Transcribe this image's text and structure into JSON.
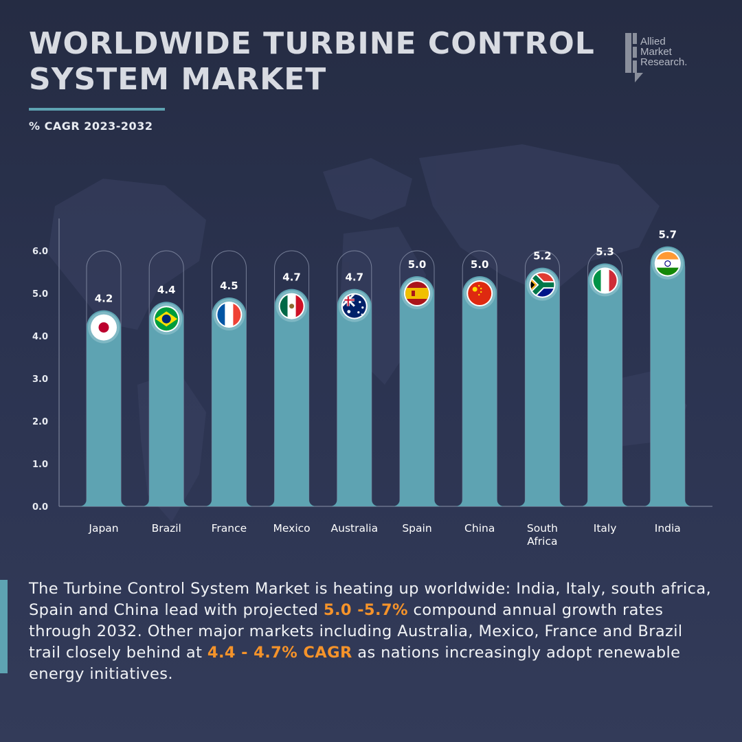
{
  "header": {
    "title": "WORLDWIDE TURBINE CONTROL SYSTEM MARKET",
    "subtitle": "% CAGR 2023-2032"
  },
  "logo": {
    "lines": [
      "Allied",
      "Market",
      "Research."
    ]
  },
  "colors": {
    "background": "#2b3350",
    "bar": "#5ea3b2",
    "highlight": "#f5932a",
    "text": "#e9ecf2"
  },
  "chart_data": {
    "type": "bar",
    "title": "",
    "xlabel": "",
    "ylabel": "",
    "ylim": [
      0,
      6
    ],
    "yticks": [
      "0.0",
      "1.0",
      "2.0",
      "3.0",
      "4.0",
      "5.0",
      "6.0"
    ],
    "grid": false,
    "categories": [
      "Japan",
      "Brazil",
      "France",
      "Mexico",
      "Australia",
      "Spain",
      "China",
      "South Africa",
      "Italy",
      "India"
    ],
    "values": [
      4.2,
      4.4,
      4.5,
      4.7,
      4.7,
      5.0,
      5.0,
      5.2,
      5.3,
      5.7
    ],
    "value_labels": [
      "4.2",
      "4.4",
      "4.5",
      "4.7",
      "4.7",
      "5.0",
      "5.0",
      "5.2",
      "5.3",
      "5.7"
    ],
    "markers": [
      "japan-flag-icon",
      "brazil-flag-icon",
      "france-flag-icon",
      "mexico-flag-icon",
      "australia-flag-icon",
      "spain-flag-icon",
      "china-flag-icon",
      "south-africa-flag-icon",
      "italy-flag-icon",
      "india-flag-icon"
    ]
  },
  "summary": {
    "part1": "The Turbine Control System Market is heating up worldwide: India, Italy, south africa, Spain and China lead with projected ",
    "highlight1": "5.0 -5.7%",
    "part2": " compound annual growth rates through 2032. Other major markets including Australia, Mexico, France and Brazil trail closely behind at ",
    "highlight2": "4.4 - 4.7% CAGR",
    "part3": " as nations increasingly adopt renewable energy initiatives."
  }
}
